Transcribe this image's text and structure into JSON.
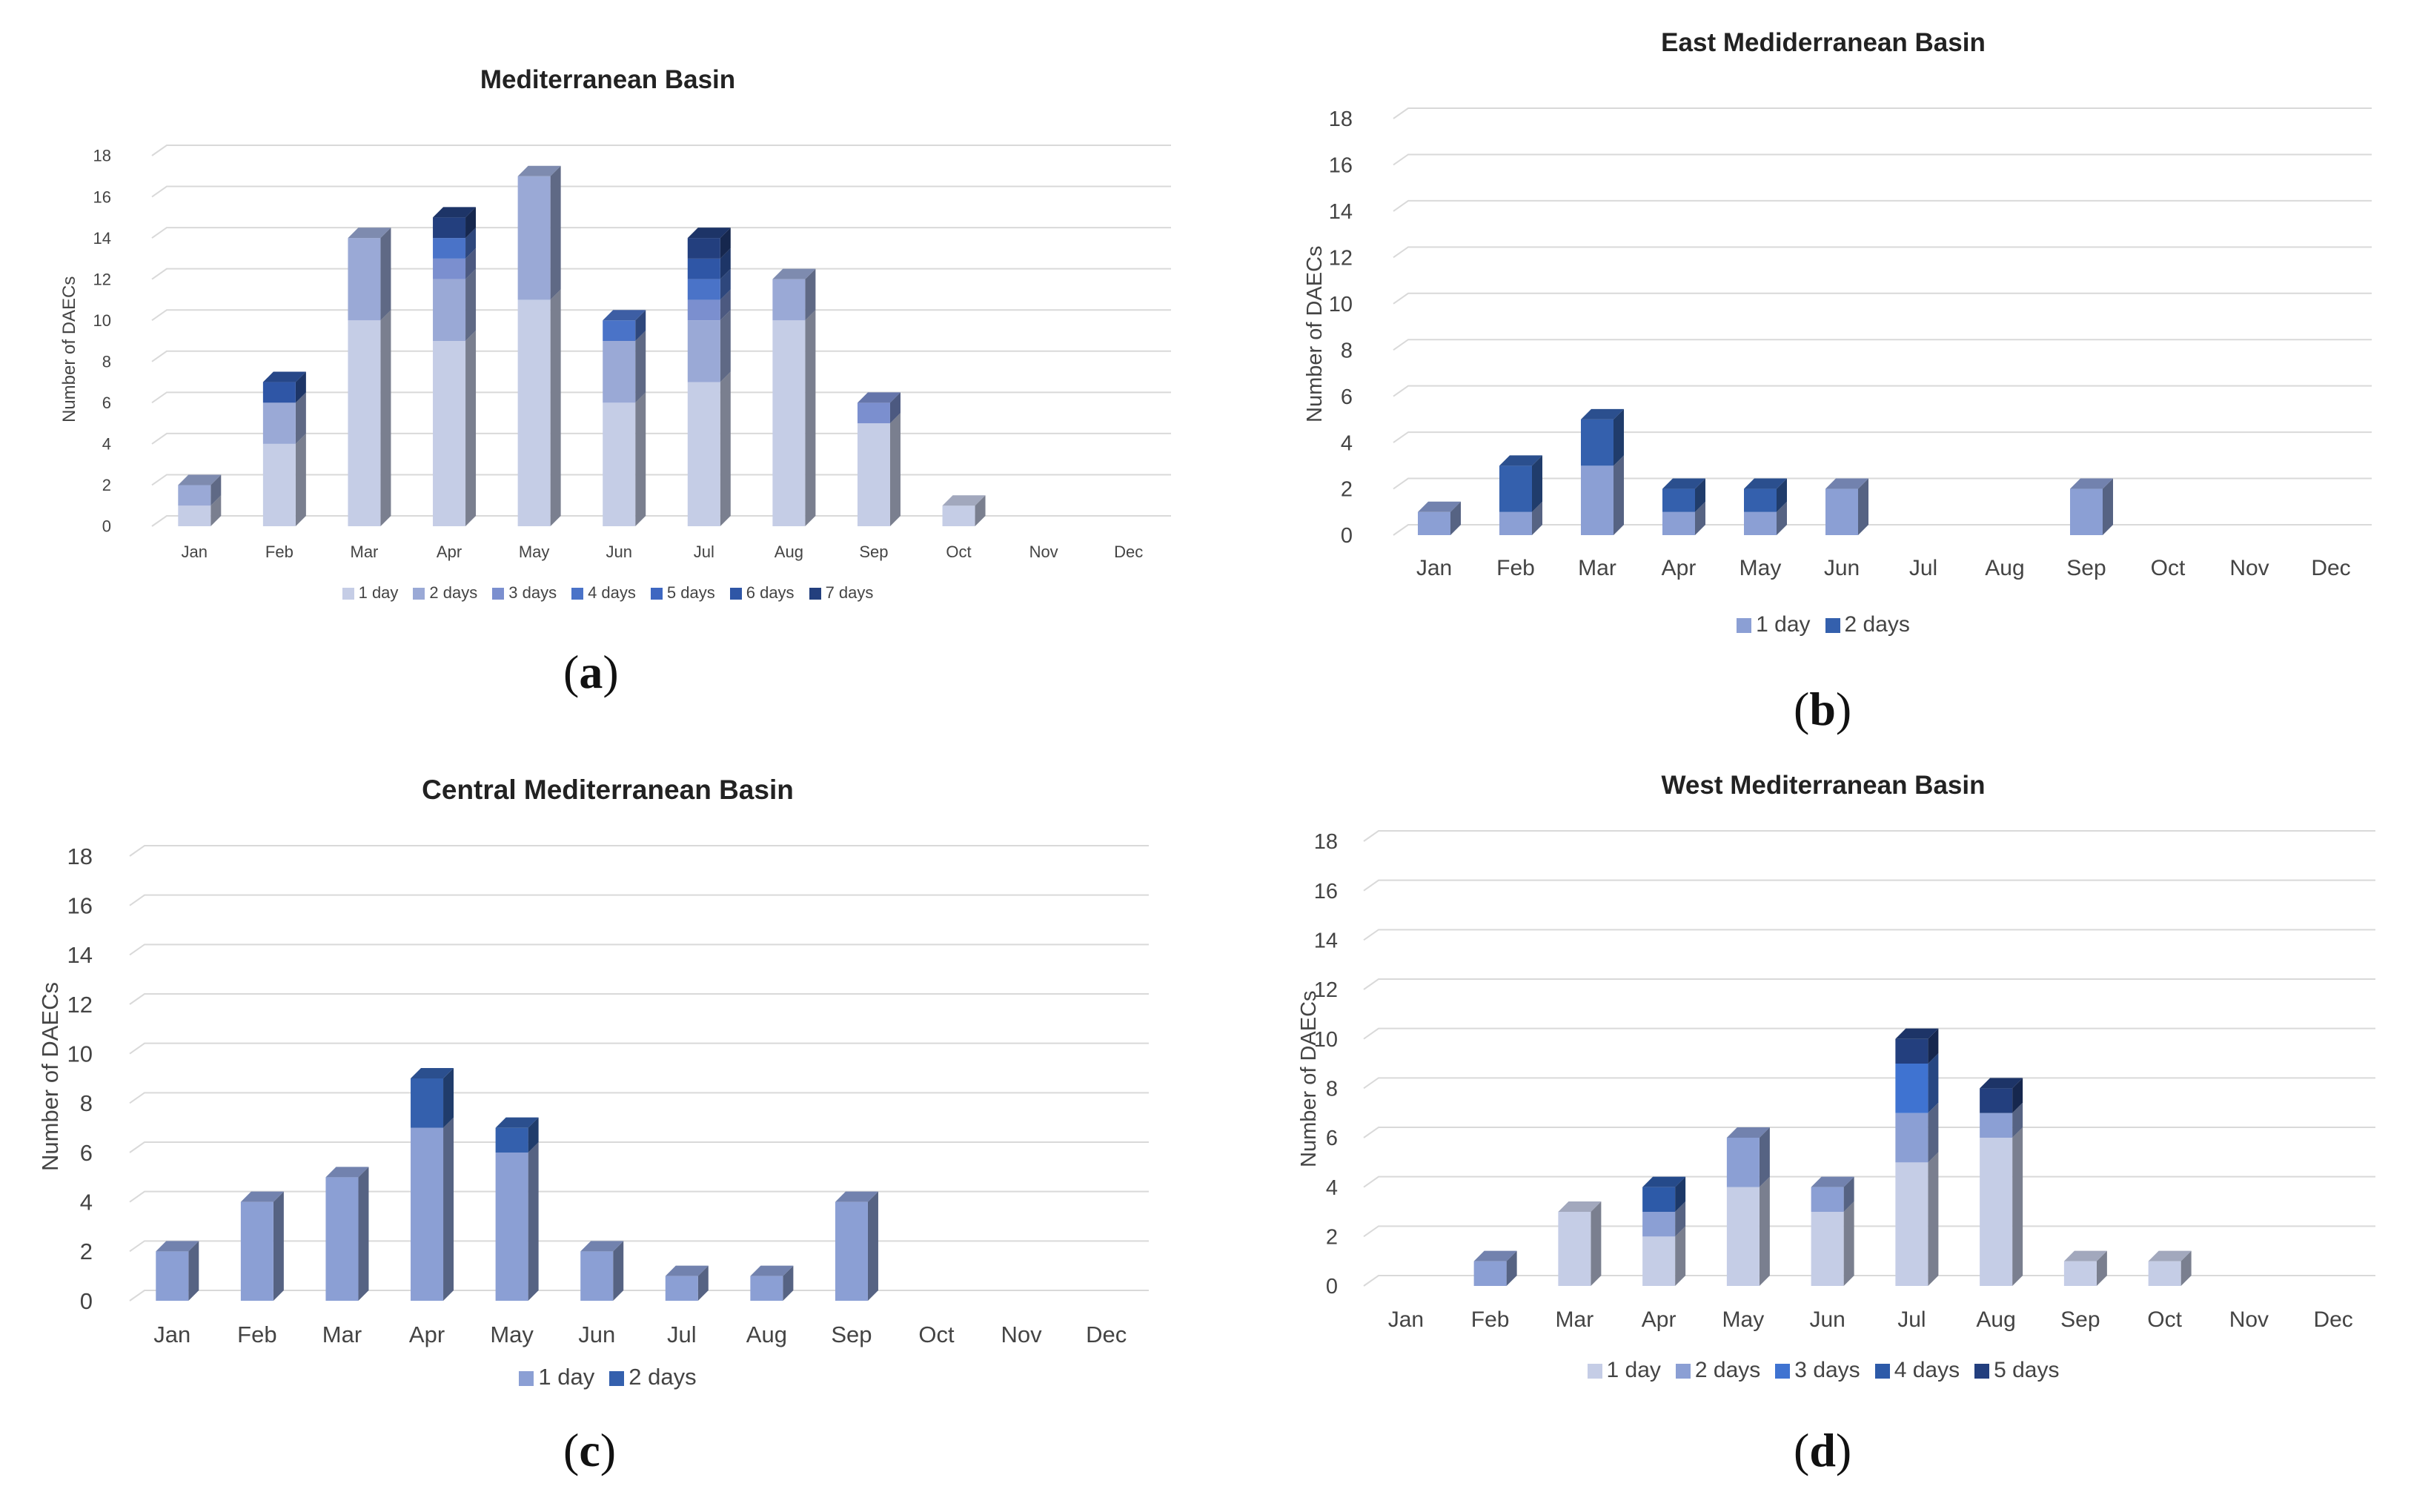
{
  "chart_data": [
    {
      "panel_label": "a",
      "type": "bar",
      "stacked": true,
      "title": "Mediterranean Basin",
      "ylabel": "Number of DAECs",
      "ylim": [
        0,
        18
      ],
      "yticks": [
        0,
        2,
        4,
        6,
        8,
        10,
        12,
        14,
        16,
        18
      ],
      "categories": [
        "Jan",
        "Feb",
        "Mar",
        "Apr",
        "May",
        "Jun",
        "Jul",
        "Aug",
        "Sep",
        "Oct",
        "Nov",
        "Dec"
      ],
      "series": [
        {
          "name": "1 day",
          "color": "#c5cde6",
          "values": [
            1,
            4,
            10,
            9,
            11,
            6,
            7,
            10,
            5,
            1,
            0,
            0
          ]
        },
        {
          "name": "2 days",
          "color": "#9aa9d6",
          "values": [
            1,
            2,
            4,
            3,
            6,
            3,
            3,
            2,
            0,
            0,
            0,
            0
          ]
        },
        {
          "name": "3 days",
          "color": "#7b8fcf",
          "values": [
            0,
            0,
            0,
            1,
            0,
            0,
            1,
            0,
            1,
            0,
            0,
            0
          ]
        },
        {
          "name": "4 days",
          "color": "#4a73c8",
          "values": [
            0,
            0,
            0,
            1,
            0,
            1,
            1,
            0,
            0,
            0,
            0,
            0
          ]
        },
        {
          "name": "5 days",
          "color": "#3e67c1",
          "values": [
            0,
            0,
            0,
            0,
            0,
            0,
            0,
            0,
            0,
            0,
            0,
            0
          ]
        },
        {
          "name": "6 days",
          "color": "#2f56a6",
          "values": [
            0,
            1,
            0,
            0,
            0,
            0,
            1,
            0,
            0,
            0,
            0,
            0
          ]
        },
        {
          "name": "7 days",
          "color": "#233f7e",
          "values": [
            0,
            0,
            0,
            1,
            0,
            0,
            1,
            0,
            0,
            0,
            0,
            0
          ]
        }
      ]
    },
    {
      "panel_label": "b",
      "type": "bar",
      "stacked": true,
      "title": "East Mediderranean Basin",
      "ylabel": "Number of DAECs",
      "ylim": [
        0,
        18
      ],
      "yticks": [
        0,
        2,
        4,
        6,
        8,
        10,
        12,
        14,
        16,
        18
      ],
      "categories": [
        "Jan",
        "Feb",
        "Mar",
        "Apr",
        "May",
        "Jun",
        "Jul",
        "Aug",
        "Sep",
        "Oct",
        "Nov",
        "Dec"
      ],
      "series": [
        {
          "name": "1 day",
          "color": "#8b9fd4",
          "values": [
            1,
            1,
            3,
            1,
            1,
            2,
            0,
            0,
            2,
            0,
            0,
            0
          ]
        },
        {
          "name": "2 days",
          "color": "#3460ad",
          "values": [
            0,
            2,
            2,
            1,
            1,
            0,
            0,
            0,
            0,
            0,
            0,
            0
          ]
        }
      ]
    },
    {
      "panel_label": "c",
      "type": "bar",
      "stacked": true,
      "title": "Central Mediterranean Basin",
      "ylabel": "Number of DAECs",
      "ylim": [
        0,
        18
      ],
      "yticks": [
        0,
        2,
        4,
        6,
        8,
        10,
        12,
        14,
        16,
        18
      ],
      "categories": [
        "Jan",
        "Feb",
        "Mar",
        "Apr",
        "May",
        "Jun",
        "Jul",
        "Aug",
        "Sep",
        "Oct",
        "Nov",
        "Dec"
      ],
      "series": [
        {
          "name": "1 day",
          "color": "#8b9fd4",
          "values": [
            2,
            4,
            5,
            7,
            6,
            2,
            1,
            1,
            4,
            0,
            0,
            0
          ]
        },
        {
          "name": "2 days",
          "color": "#3460ad",
          "values": [
            0,
            0,
            0,
            2,
            1,
            0,
            0,
            0,
            0,
            0,
            0,
            0
          ]
        }
      ]
    },
    {
      "panel_label": "d",
      "type": "bar",
      "stacked": true,
      "title": "West Mediterranean Basin",
      "ylabel": "Number of DAECs",
      "ylim": [
        0,
        18
      ],
      "yticks": [
        0,
        2,
        4,
        6,
        8,
        10,
        12,
        14,
        16,
        18
      ],
      "categories": [
        "Jan",
        "Feb",
        "Mar",
        "Apr",
        "May",
        "Jun",
        "Jul",
        "Aug",
        "Sep",
        "Oct",
        "Nov",
        "Dec"
      ],
      "series": [
        {
          "name": "1 day",
          "color": "#c5cde6",
          "values": [
            0,
            0,
            3,
            2,
            4,
            3,
            5,
            6,
            1,
            1,
            0,
            0
          ]
        },
        {
          "name": "2 days",
          "color": "#8b9fd4",
          "values": [
            0,
            1,
            0,
            1,
            2,
            1,
            2,
            1,
            0,
            0,
            0,
            0
          ]
        },
        {
          "name": "3 days",
          "color": "#3f73d1",
          "values": [
            0,
            0,
            0,
            0,
            0,
            0,
            2,
            0,
            0,
            0,
            0,
            0
          ]
        },
        {
          "name": "4 days",
          "color": "#2d5aa8",
          "values": [
            0,
            0,
            0,
            1,
            0,
            0,
            0,
            0,
            0,
            0,
            0,
            0
          ]
        },
        {
          "name": "5 days",
          "color": "#233f7e",
          "values": [
            0,
            0,
            0,
            0,
            0,
            0,
            1,
            1,
            0,
            0,
            0,
            0
          ]
        }
      ]
    }
  ]
}
